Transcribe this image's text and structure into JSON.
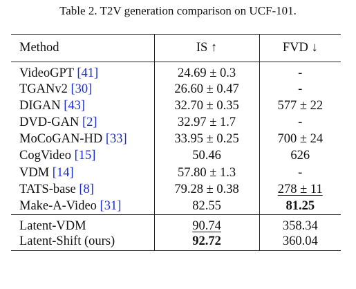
{
  "caption": "Table 2. T2V generation comparison on UCF-101.",
  "columns": {
    "method": "Method",
    "is": "IS ↑",
    "fvd": "FVD ↓"
  },
  "rows_baseline": [
    {
      "name": "VideoGPT ",
      "cite": "[41]",
      "is": "24.69 ± 0.3",
      "fvd": "-"
    },
    {
      "name": "TGANv2 ",
      "cite": "[30]",
      "is": "26.60 ± 0.47",
      "fvd": "-"
    },
    {
      "name": "DIGAN ",
      "cite": "[43]",
      "is": "32.70 ± 0.35",
      "fvd": "577 ± 22"
    },
    {
      "name": "DVD-GAN ",
      "cite": "[2]",
      "is": "32.97 ± 1.7",
      "fvd": "-"
    },
    {
      "name": "MoCoGAN-HD ",
      "cite": "[33]",
      "is": "33.95 ± 0.25",
      "fvd": "700 ± 24"
    },
    {
      "name": "CogVideo ",
      "cite": "[15]",
      "is": "50.46",
      "fvd": "626"
    },
    {
      "name": "VDM ",
      "cite": "[14]",
      "is": "57.80 ± 1.3",
      "fvd": "-"
    },
    {
      "name": "TATS-base ",
      "cite": "[8]",
      "is": "79.28 ± 0.38",
      "fvd": "278 ± 11"
    },
    {
      "name": "Make-A-Video ",
      "cite": "[31]",
      "is": "82.55",
      "fvd": "81.25"
    }
  ],
  "rows_latent": [
    {
      "name": "Latent-VDM",
      "is": "90.74",
      "fvd": "358.34"
    },
    {
      "name": "Latent-Shift (ours)",
      "is": "92.72",
      "fvd": "360.04"
    }
  ]
}
